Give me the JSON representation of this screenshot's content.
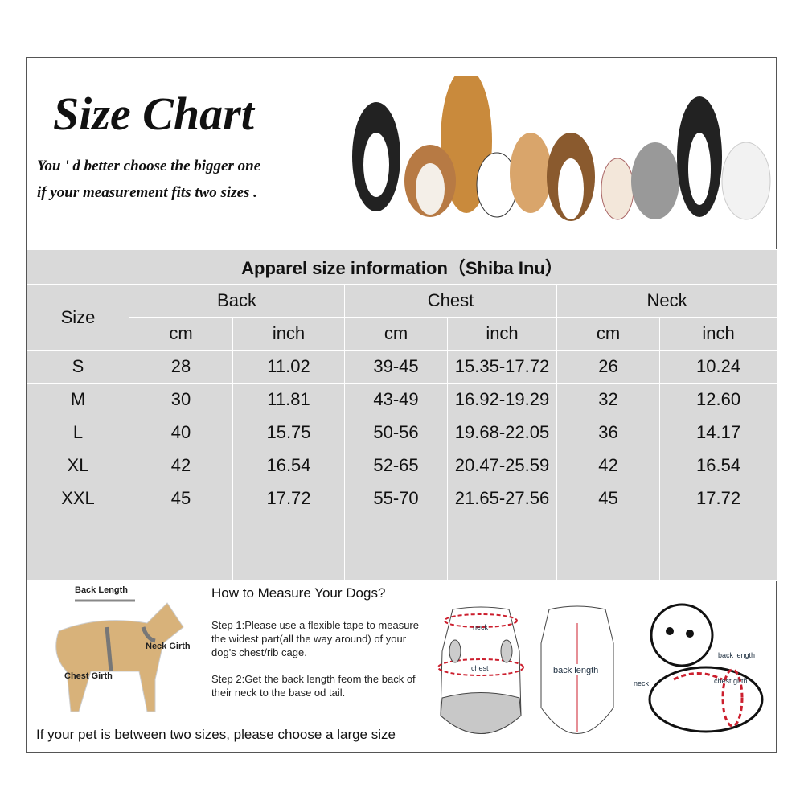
{
  "header": {
    "title": "Size Chart",
    "note_line1": "You ' d better choose the bigger one",
    "note_line2": "if your measurement fits two sizes ."
  },
  "table": {
    "title": "Apparel  size  information（Shiba Inu）",
    "size_header": "Size",
    "groups": [
      "Back",
      "Chest",
      "Neck"
    ],
    "units": [
      "cm",
      "inch",
      "cm",
      "inch",
      "cm",
      "inch"
    ],
    "rows": [
      [
        "S",
        "28",
        "11.02",
        "39-45",
        "15.35-17.72",
        "26",
        "10.24"
      ],
      [
        "M",
        "30",
        "11.81",
        "43-49",
        "16.92-19.29",
        "32",
        "12.60"
      ],
      [
        "L",
        "40",
        "15.75",
        "50-56",
        "19.68-22.05",
        "36",
        "14.17"
      ],
      [
        "XL",
        "42",
        "16.54",
        "52-65",
        "20.47-25.59",
        "42",
        "16.54"
      ],
      [
        "XXL",
        "45",
        "17.72",
        "55-70",
        "21.65-27.56",
        "45",
        "17.72"
      ],
      [
        "",
        "",
        "",
        "",
        "",
        "",
        ""
      ],
      [
        "",
        "",
        "",
        "",
        "",
        "",
        ""
      ]
    ]
  },
  "measure": {
    "dog_labels": {
      "back": "Back Length",
      "neck": "Neck Girth",
      "chest": "Chest Girth"
    },
    "heading": "How to Measure Your Dogs?",
    "step1": "Step 1:Please use a flexible tape to measure the widest part(all the way around) of your dog's chest/rib cage.",
    "step2": "Step 2:Get the back length feom the back of their neck to the base od tail.",
    "garment_labels": {
      "neck": "neck",
      "chest": "chest",
      "back": "back length"
    },
    "puppy_labels": {
      "back": "back length",
      "neck": "neck",
      "chest": "chest girth"
    },
    "footer": "If your pet is between two sizes, please choose a large size"
  },
  "colors": {
    "cell": "#d9d9d9",
    "accent": "#cc1f2e"
  }
}
